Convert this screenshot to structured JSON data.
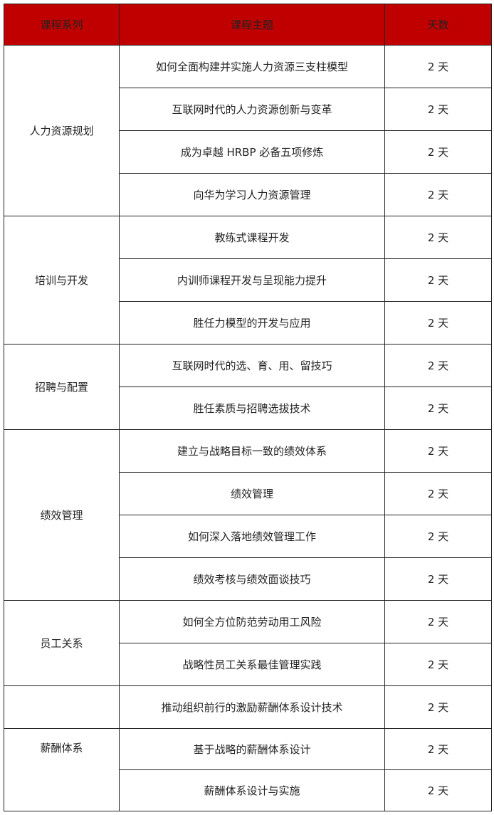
{
  "header": {
    "series": "课程系列",
    "topic": "课程主题",
    "days": "天数"
  },
  "colors": {
    "header_bg": "#c00000"
  },
  "groups": [
    {
      "name": "人力资源规划",
      "rows": [
        {
          "topic": "如何全面构建并实施人力资源三支柱模型",
          "days": "2 天"
        },
        {
          "topic": "互联网时代的人力资源创新与变革",
          "days": "2 天"
        },
        {
          "topic": "成为卓越 HRBP 必备五项修炼",
          "days": "2 天"
        },
        {
          "topic": "向华为学习人力资源管理",
          "days": "2 天"
        }
      ]
    },
    {
      "name": "培训与开发",
      "rows": [
        {
          "topic": "教练式课程开发",
          "days": "2 天"
        },
        {
          "topic": "内训师课程开发与呈现能力提升",
          "days": "2 天"
        },
        {
          "topic": "胜任力模型的开发与应用",
          "days": "2 天"
        }
      ]
    },
    {
      "name": "招聘与配置",
      "rows": [
        {
          "topic": "互联网时代的选、育、用、留技巧",
          "days": "2 天"
        },
        {
          "topic": "胜任素质与招聘选拔技术",
          "days": "2 天"
        }
      ]
    },
    {
      "name": "绩效管理",
      "rows": [
        {
          "topic": "建立与战略目标一致的绩效体系",
          "days": "2 天"
        },
        {
          "topic": "绩效管理",
          "days": "2 天"
        },
        {
          "topic": "如何深入落地绩效管理工作",
          "days": "2 天"
        },
        {
          "topic": "绩效考核与绩效面谈技巧",
          "days": "2 天"
        }
      ]
    },
    {
      "name": "员工关系",
      "rows": [
        {
          "topic": "如何全方位防范劳动用工风险",
          "days": "2 天"
        },
        {
          "topic": "战略性员工关系最佳管理实践",
          "days": "2 天"
        }
      ]
    },
    {
      "name": "",
      "rows": [
        {
          "topic": "推动组织前行的激励薪酬体系设计技术",
          "days": "2 天"
        }
      ]
    },
    {
      "name": "薪酬体系",
      "rows": [
        {
          "topic": "基于战略的薪酬体系设计",
          "days": "2 天"
        },
        {
          "topic": "薪酬体系设计与实施",
          "days": "2 天"
        }
      ]
    }
  ]
}
